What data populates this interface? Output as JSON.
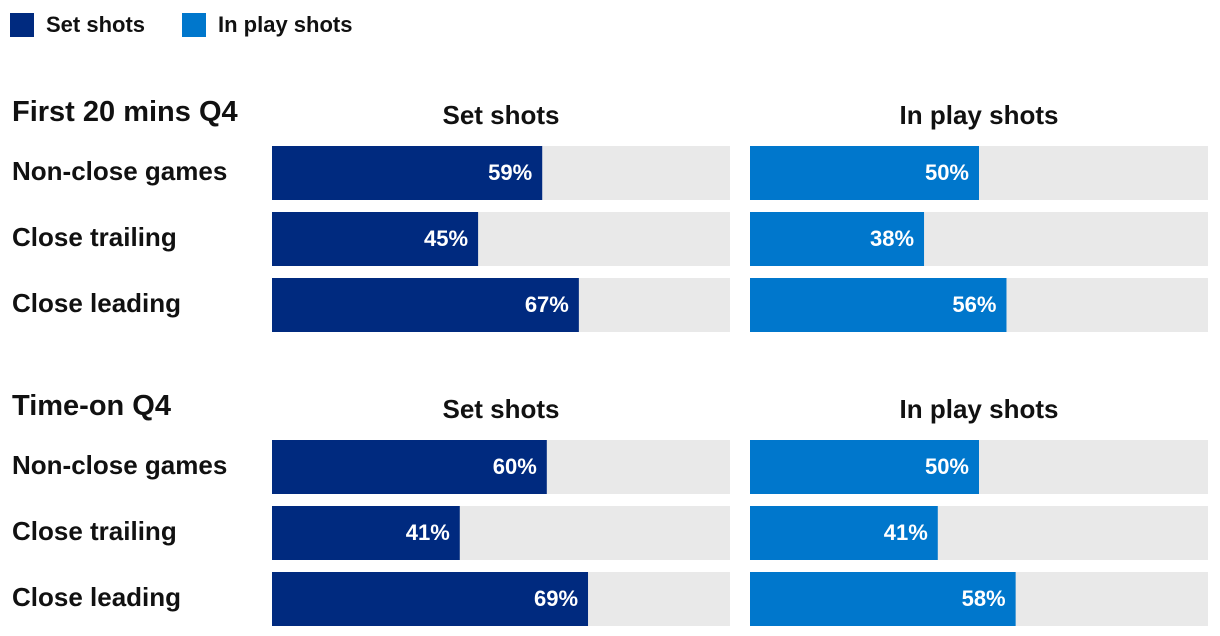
{
  "legend": {
    "items": [
      {
        "label": "Set shots",
        "color": "#002A7F"
      },
      {
        "label": "In play shots",
        "color": "#0077CC"
      }
    ]
  },
  "colors": {
    "track": "#E9E9E9",
    "set": "#002A7F",
    "in_play": "#0077CC",
    "value_text": "#FFFFFF"
  },
  "chart_data": {
    "type": "bar",
    "orientation": "horizontal",
    "xlim": [
      0,
      100
    ],
    "value_suffix": "%",
    "groups": [
      {
        "title": "First 20 mins Q4",
        "categories": [
          "Non-close games",
          "Close trailing",
          "Close leading"
        ],
        "panels": [
          {
            "title": "Set shots",
            "series": "Set shots",
            "values": [
              59,
              45,
              67
            ]
          },
          {
            "title": "In play shots",
            "series": "In play shots",
            "values": [
              50,
              38,
              56
            ]
          }
        ]
      },
      {
        "title": "Time-on Q4",
        "categories": [
          "Non-close games",
          "Close trailing",
          "Close leading"
        ],
        "panels": [
          {
            "title": "Set shots",
            "series": "Set shots",
            "values": [
              60,
              41,
              69
            ]
          },
          {
            "title": "In play shots",
            "series": "In play shots",
            "values": [
              50,
              41,
              58
            ]
          }
        ]
      }
    ]
  }
}
